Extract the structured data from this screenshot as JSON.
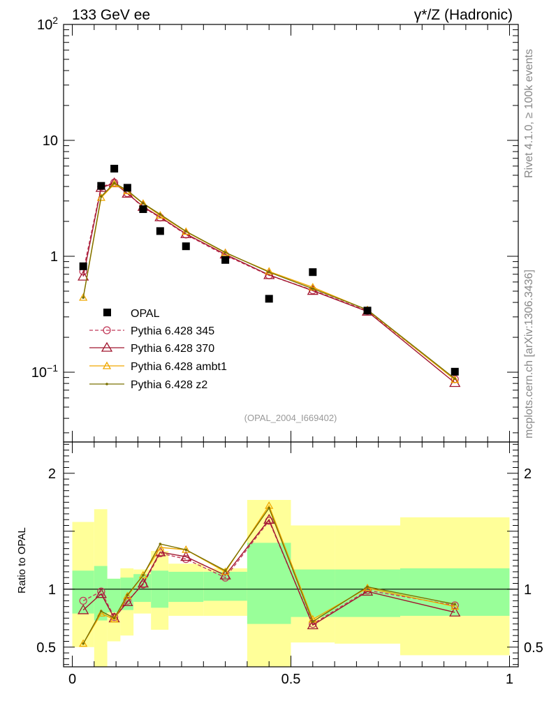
{
  "chart_data": {
    "type": "scatter",
    "title_left": "133 GeV ee",
    "title_right": "γ*/Z (Hadronic)",
    "side_label_top": "Rivet 4.1.0, ≥ 100k events",
    "side_label_bottom": "mcplots.cern.ch [arXiv:1306.3436]",
    "analysis_id": "(OPAL_2004_I669402)",
    "ratio_ylabel": "Ratio to OPAL",
    "main_ylim": [
      0.025,
      100
    ],
    "main_yscale": "log",
    "main_ytick_labels": [
      {
        "value": 0.1,
        "base": "10",
        "exp": "−1"
      },
      {
        "value": 1,
        "base": "1",
        "exp": ""
      },
      {
        "value": 10,
        "base": "10",
        "exp": ""
      },
      {
        "value": 100,
        "base": "10",
        "exp": "2"
      }
    ],
    "ratio_ylim": [
      0.33,
      2.27
    ],
    "ratio_ytick_labels": [
      {
        "value": 0.5,
        "label": "0.5"
      },
      {
        "value": 1,
        "label": "1"
      },
      {
        "value": 2,
        "label": "2"
      }
    ],
    "xlim": [
      -0.02,
      1.02
    ],
    "xtick_labels": [
      {
        "value": 0,
        "label": "0"
      },
      {
        "value": 0.5,
        "label": "0.5"
      },
      {
        "value": 1,
        "label": "1"
      }
    ],
    "data": {
      "name": "OPAL",
      "color": "#000000",
      "x": [
        0.025,
        0.066,
        0.096,
        0.126,
        0.162,
        0.201,
        0.26,
        0.35,
        0.45,
        0.55,
        0.675,
        0.875
      ],
      "y": [
        0.82,
        4.05,
        5.7,
        3.9,
        2.55,
        1.65,
        1.22,
        0.93,
        0.43,
        0.73,
        0.34,
        0.101
      ],
      "bins": [
        [
          0.0,
          0.05
        ],
        [
          0.05,
          0.08
        ],
        [
          0.08,
          0.11
        ],
        [
          0.11,
          0.14
        ],
        [
          0.14,
          0.18
        ],
        [
          0.18,
          0.22
        ],
        [
          0.22,
          0.3
        ],
        [
          0.3,
          0.4
        ],
        [
          0.4,
          0.5
        ],
        [
          0.5,
          0.6
        ],
        [
          0.6,
          0.75
        ],
        [
          0.75,
          1.0
        ]
      ],
      "band_inner": [
        [
          0.79,
          1.16
        ],
        [
          0.73,
          1.2
        ],
        [
          0.8,
          1.09
        ],
        [
          0.82,
          1.1
        ],
        [
          0.89,
          1.13
        ],
        [
          0.84,
          1.16
        ],
        [
          0.89,
          1.15
        ],
        [
          0.9,
          1.15
        ],
        [
          0.7,
          1.4
        ],
        [
          0.76,
          1.17
        ],
        [
          0.76,
          1.17
        ],
        [
          0.77,
          1.18
        ]
      ],
      "band_outer": [
        [
          0.5,
          1.58
        ],
        [
          0.3,
          1.69
        ],
        [
          0.55,
          1.09
        ],
        [
          0.6,
          1.18
        ],
        [
          0.79,
          1.17
        ],
        [
          0.65,
          1.33
        ],
        [
          0.77,
          1.22
        ],
        [
          0.77,
          1.18
        ],
        [
          0.3,
          1.77
        ],
        [
          0.54,
          1.55
        ],
        [
          0.53,
          1.55
        ],
        [
          0.43,
          1.62
        ]
      ]
    },
    "series": [
      {
        "name": "Pythia 6.428 345",
        "color": "#c23b5a",
        "marker": "circle",
        "dash": "5,3",
        "y": [
          0.74,
          3.98,
          4.32,
          3.5,
          2.64,
          2.16,
          1.54,
          1.02,
          0.685,
          0.51,
          0.338,
          0.087
        ]
      },
      {
        "name": "Pythia 6.428 370",
        "color": "#a1162f",
        "marker": "triangle",
        "dash": "",
        "y": [
          0.67,
          3.9,
          4.28,
          3.48,
          2.68,
          2.18,
          1.56,
          1.04,
          0.69,
          0.505,
          0.334,
          0.081
        ]
      },
      {
        "name": "Pythia 6.428 ambt1",
        "color": "#f0a800",
        "marker": "triangle",
        "dash": "",
        "y": [
          0.44,
          3.2,
          4.2,
          3.65,
          2.85,
          2.25,
          1.63,
          1.07,
          0.74,
          0.54,
          0.344,
          0.086
        ]
      },
      {
        "name": "Pythia 6.428 z2",
        "color": "#7a7000",
        "marker": "dot",
        "dash": "",
        "y": [
          0.44,
          3.28,
          4.28,
          3.7,
          2.86,
          2.3,
          1.64,
          1.08,
          0.73,
          0.525,
          0.346,
          0.088
        ]
      }
    ],
    "ratio_series": [
      {
        "name": "Pythia 6.428 345",
        "y": [
          0.9,
          0.98,
          0.76,
          0.9,
          1.04,
          1.31,
          1.26,
          1.1,
          1.59,
          0.7,
          0.99,
          0.86
        ]
      },
      {
        "name": "Pythia 6.428 370",
        "y": [
          0.82,
          0.96,
          0.75,
          0.89,
          1.05,
          1.32,
          1.28,
          1.12,
          1.6,
          0.69,
          0.98,
          0.8
        ]
      },
      {
        "name": "Pythia 6.428 ambt1",
        "y": [
          0.53,
          0.79,
          0.74,
          0.94,
          1.12,
          1.36,
          1.34,
          1.15,
          1.72,
          0.74,
          1.01,
          0.85
        ]
      },
      {
        "name": "Pythia 6.428 z2",
        "y": [
          0.53,
          0.81,
          0.75,
          0.95,
          1.12,
          1.39,
          1.34,
          1.16,
          1.7,
          0.72,
          1.02,
          0.87
        ]
      }
    ]
  }
}
